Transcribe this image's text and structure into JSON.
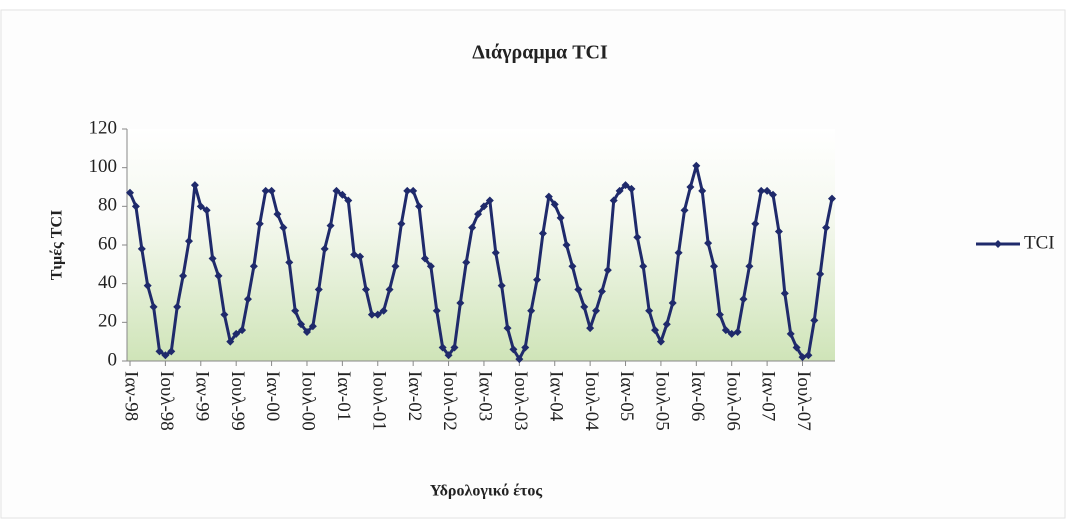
{
  "chart_data": {
    "type": "line",
    "title": "Διάγραμμα TCI",
    "x_label": "Υδρολογικό έτος",
    "y_label": "Τιμές TCI",
    "categories": [
      "Ιαν-98",
      null,
      null,
      null,
      null,
      null,
      "Ιουλ-98",
      null,
      null,
      null,
      null,
      null,
      "Ιαν-99",
      null,
      null,
      null,
      null,
      null,
      "Ιουλ-99",
      null,
      null,
      null,
      null,
      null,
      "Ιαν-00",
      null,
      null,
      null,
      null,
      null,
      "Ιουλ-00",
      null,
      null,
      null,
      null,
      null,
      "Ιαν-01",
      null,
      null,
      null,
      null,
      null,
      "Ιουλ-01",
      null,
      null,
      null,
      null,
      null,
      "Ιαν-02",
      null,
      null,
      null,
      null,
      null,
      "Ιουλ-02",
      null,
      null,
      null,
      null,
      null,
      "Ιαν-03",
      null,
      null,
      null,
      null,
      null,
      "Ιουλ-03",
      null,
      null,
      null,
      null,
      null,
      "Ιαν-04",
      null,
      null,
      null,
      null,
      null,
      "Ιουλ-04",
      null,
      null,
      null,
      null,
      null,
      "Ιαν-05",
      null,
      null,
      null,
      null,
      null,
      "Ιουλ-05",
      null,
      null,
      null,
      null,
      null,
      "Ιαν-06",
      null,
      null,
      null,
      null,
      null,
      "Ιουλ-06",
      null,
      null,
      null,
      null,
      null,
      "Ιαν-07",
      null,
      null,
      null,
      null,
      null,
      "Ιουλ-07",
      null,
      null,
      null,
      null,
      null
    ],
    "series": [
      {
        "name": "TCI",
        "color": "#1f2a6b",
        "values": [
          87,
          80,
          58,
          39,
          28,
          5,
          3,
          5,
          28,
          44,
          62,
          91,
          80,
          78,
          53,
          44,
          24,
          10,
          14,
          16,
          32,
          49,
          71,
          88,
          88,
          76,
          69,
          51,
          26,
          19,
          15,
          18,
          37,
          58,
          70,
          88,
          86,
          83,
          55,
          54,
          37,
          24,
          24,
          26,
          37,
          49,
          71,
          88,
          88,
          80,
          53,
          49,
          26,
          7,
          3,
          7,
          30,
          51,
          69,
          76,
          80,
          83,
          56,
          39,
          17,
          6,
          1,
          7,
          26,
          42,
          66,
          85,
          81,
          74,
          60,
          49,
          37,
          28,
          17,
          26,
          36,
          47,
          83,
          88,
          91,
          89,
          64,
          49,
          26,
          16,
          10,
          19,
          30,
          56,
          78,
          90,
          101,
          88,
          61,
          49,
          24,
          16,
          14,
          15,
          32,
          49,
          71,
          88,
          88,
          86,
          67,
          35,
          14,
          7,
          2,
          3,
          21,
          45,
          69,
          84
        ]
      }
    ],
    "ylim": [
      0,
      120
    ],
    "yticks": [
      0,
      20,
      40,
      60,
      80,
      100,
      120
    ],
    "grid": false,
    "legend": "right"
  }
}
